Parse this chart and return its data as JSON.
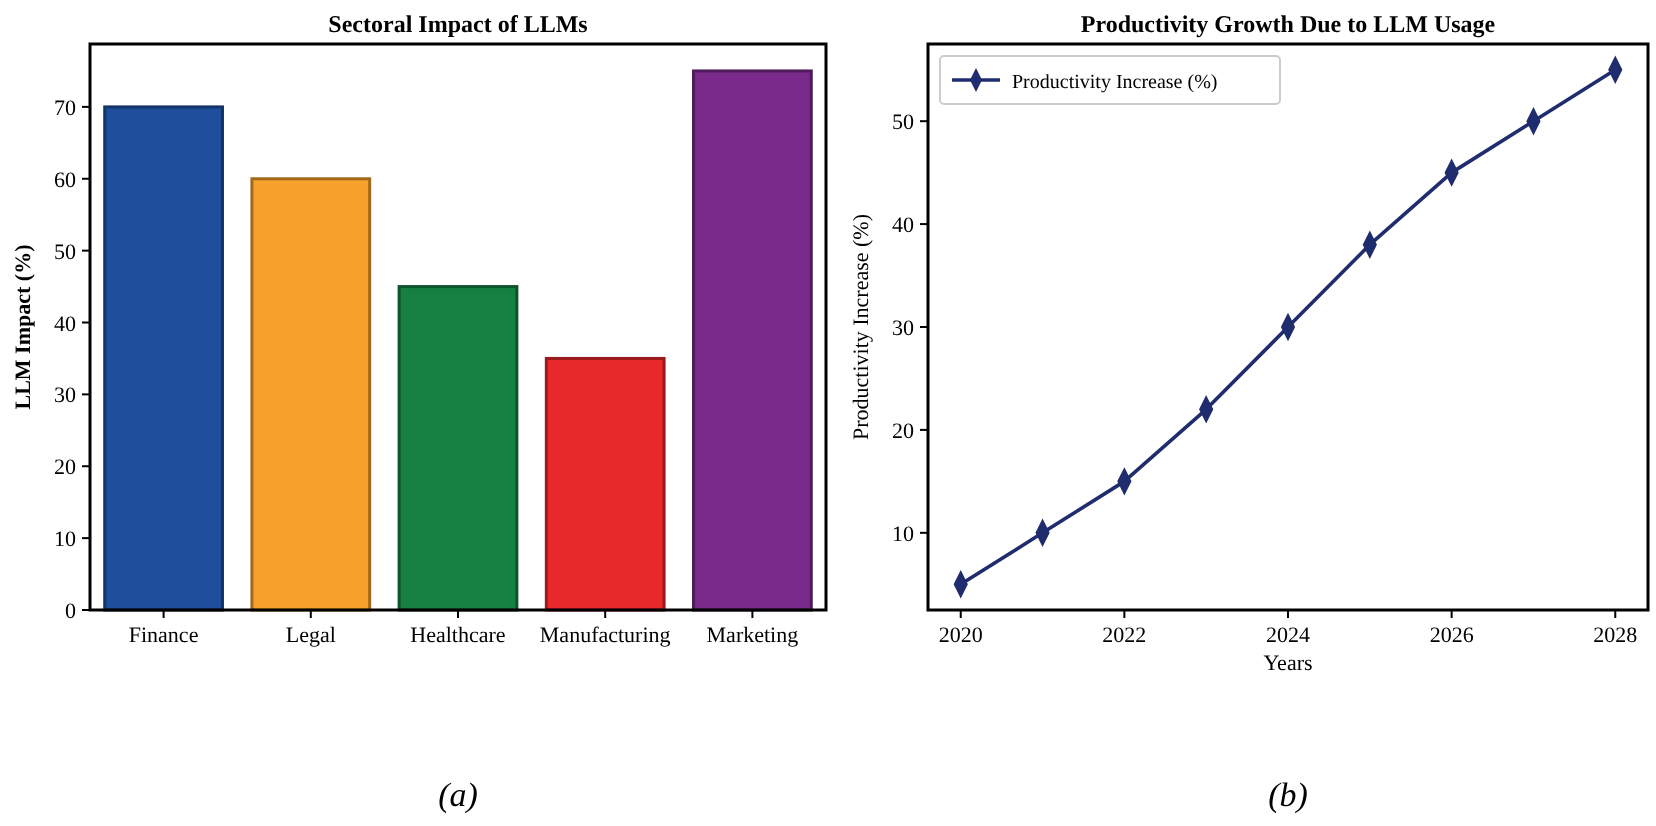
{
  "chart_data": [
    {
      "type": "bar",
      "title": "Sectoral Impact of LLMs",
      "ylabel": "LLM Impact (%)",
      "categories": [
        "Finance",
        "Legal",
        "Healthcare",
        "Manufacturing",
        "Marketing"
      ],
      "values": [
        70,
        60,
        45,
        35,
        75
      ],
      "colors": [
        "#1f4e9c",
        "#f5a12a",
        "#158040",
        "#e8292c",
        "#7a2a8a"
      ],
      "ylim": [
        0,
        78.75
      ],
      "yticks": [
        0,
        10,
        20,
        30,
        40,
        50,
        60,
        70
      ],
      "grid": false,
      "annotations": [
        "(a)"
      ]
    },
    {
      "type": "line",
      "title": "Productivity Growth Due to LLM Usage",
      "xlabel": "Years",
      "ylabel": "Productivity Increase (%)",
      "x": [
        2020,
        2021,
        2022,
        2023,
        2024,
        2025,
        2026,
        2027,
        2028
      ],
      "series": [
        {
          "name": "Productivity Increase (%)",
          "color": "#1f2d6e",
          "values": [
            5,
            10,
            15,
            22,
            30,
            38,
            45,
            50,
            55
          ]
        }
      ],
      "xlim": [
        2019.6,
        2028.4
      ],
      "xticks": [
        2020,
        2022,
        2024,
        2026,
        2028
      ],
      "ylim": [
        2.5,
        57.5
      ],
      "yticks": [
        10,
        20,
        30,
        40,
        50
      ],
      "grid": false,
      "legend": "top left",
      "marker": "diamond",
      "line_style": "solid",
      "annotations": [
        "(b)"
      ]
    }
  ]
}
